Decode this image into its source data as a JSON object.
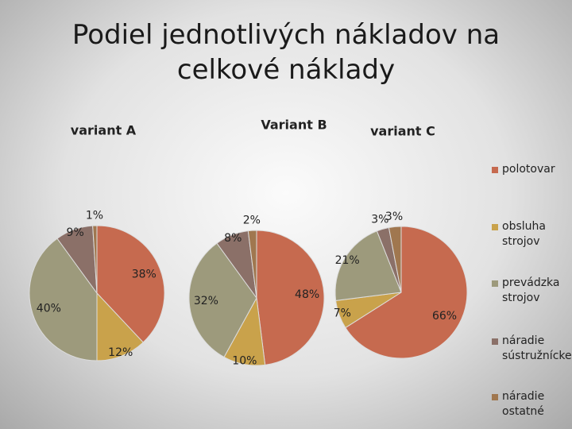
{
  "title": "Podiel jednotlivých nákladov na celkové náklady",
  "legend": {
    "labels": [
      "polotovar",
      "obsluha strojov",
      "prevádzka strojov",
      "náradie sústružnícke",
      "náradie ostatné"
    ],
    "colors": [
      "#c66a4f",
      "#c9a24b",
      "#9d9a7c",
      "#8b7068",
      "#a0774f"
    ]
  },
  "chart_data": [
    {
      "type": "pie",
      "title": "variant A",
      "values": [
        38,
        12,
        40,
        9,
        1
      ],
      "value_labels": [
        "38%",
        "12%",
        "40%",
        "9%",
        "1%"
      ]
    },
    {
      "type": "pie",
      "title": "Variant B",
      "values": [
        48,
        10,
        32,
        8,
        2
      ],
      "value_labels": [
        "48%",
        "10%",
        "32%",
        "8%",
        "2%"
      ]
    },
    {
      "type": "pie",
      "title": "variant C",
      "values": [
        66,
        7,
        21,
        3,
        3
      ],
      "value_labels": [
        "66%",
        "7%",
        "21%",
        "3%",
        "3%"
      ]
    }
  ]
}
